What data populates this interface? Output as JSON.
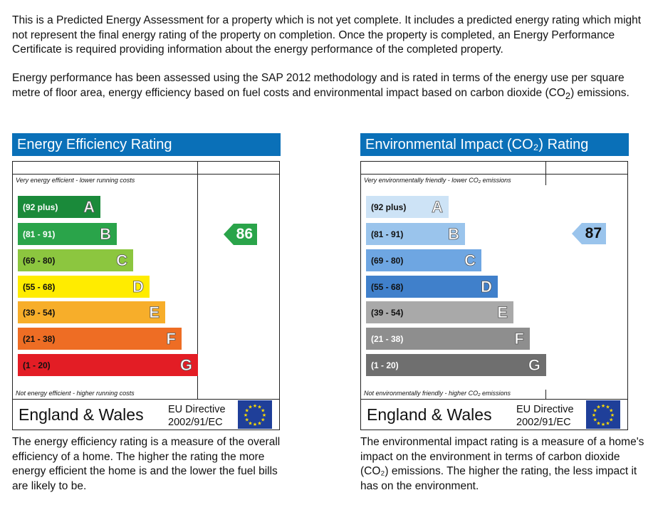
{
  "intro": {
    "paragraph1": "This is a Predicted Energy Assessment for a property which is not yet complete. It includes a predicted energy rating which might not represent the final energy rating of the property on completion. Once the property is completed, an Energy Performance Certificate is required providing information about the energy performance of the completed property.",
    "paragraph2_main": "Energy performance has been assessed using the SAP 2012 methodology and is rated in terms of the energy use per square metre of floor area, energy efficiency based on fuel costs and environmental impact based on carbon dioxide (CO",
    "paragraph2_sub": "2",
    "paragraph2_end": ") emissions."
  },
  "energy": {
    "title": "Energy Efficiency Rating",
    "top_note": "Very energy efficient - lower running costs",
    "bottom_note": "Not energy efficient - higher running costs",
    "region": "England & Wales",
    "directive_line1": "EU Directive",
    "directive_line2": "2002/91/EC",
    "current_rating": 86,
    "rating_band": "B",
    "rating_color": "#2aa44a",
    "description": "The energy efficiency rating is a measure of the overall efficiency of a home. The higher the rating the more energy efficient the home is and the lower the fuel bills are likely to be.",
    "bands": [
      {
        "letter": "A",
        "range": "(92 plus)",
        "color": "#1a8a3a",
        "text": "#fff"
      },
      {
        "letter": "B",
        "range": "(81 - 91)",
        "color": "#2aa44a",
        "text": "#fff"
      },
      {
        "letter": "C",
        "range": "(69 - 80)",
        "color": "#8cc63f",
        "text": "#111"
      },
      {
        "letter": "D",
        "range": "(55 - 68)",
        "color": "#ffec00",
        "text": "#111"
      },
      {
        "letter": "E",
        "range": "(39 - 54)",
        "color": "#f7ae2a",
        "text": "#111"
      },
      {
        "letter": "F",
        "range": "(21 - 38)",
        "color": "#ee6d24",
        "text": "#111"
      },
      {
        "letter": "G",
        "range": "(1 - 20)",
        "color": "#e31d25",
        "text": "#111"
      }
    ]
  },
  "environment": {
    "title": "Environmental Impact (CO₂) Rating",
    "top_note": "Very environmentally friendly - lower CO₂ emissions",
    "bottom_note": "Not environmentally friendly - higher CO₂ emissions",
    "region": "England & Wales",
    "directive_line1": "EU Directive",
    "directive_line2": "2002/91/EC",
    "current_rating": 87,
    "rating_band": "B",
    "rating_color": "#9ac4ec",
    "description": "The environmental impact rating is a measure of a home's impact on the environment in terms of carbon dioxide (CO₂) emissions. The higher the rating, the less impact it has on the environment.",
    "bands": [
      {
        "letter": "A",
        "range": "(92 plus)",
        "color": "#cde3f6",
        "text": "#111"
      },
      {
        "letter": "B",
        "range": "(81 - 91)",
        "color": "#9ac4ec",
        "text": "#111"
      },
      {
        "letter": "C",
        "range": "(69 - 80)",
        "color": "#6ea6e2",
        "text": "#111"
      },
      {
        "letter": "D",
        "range": "(55 - 68)",
        "color": "#4080cb",
        "text": "#111"
      },
      {
        "letter": "E",
        "range": "(39 - 54)",
        "color": "#a9a9a9",
        "text": "#111"
      },
      {
        "letter": "F",
        "range": "(21 - 38)",
        "color": "#8e8e8e",
        "text": "#fff"
      },
      {
        "letter": "G",
        "range": "(1 - 20)",
        "color": "#6f6f6f",
        "text": "#fff"
      }
    ]
  }
}
